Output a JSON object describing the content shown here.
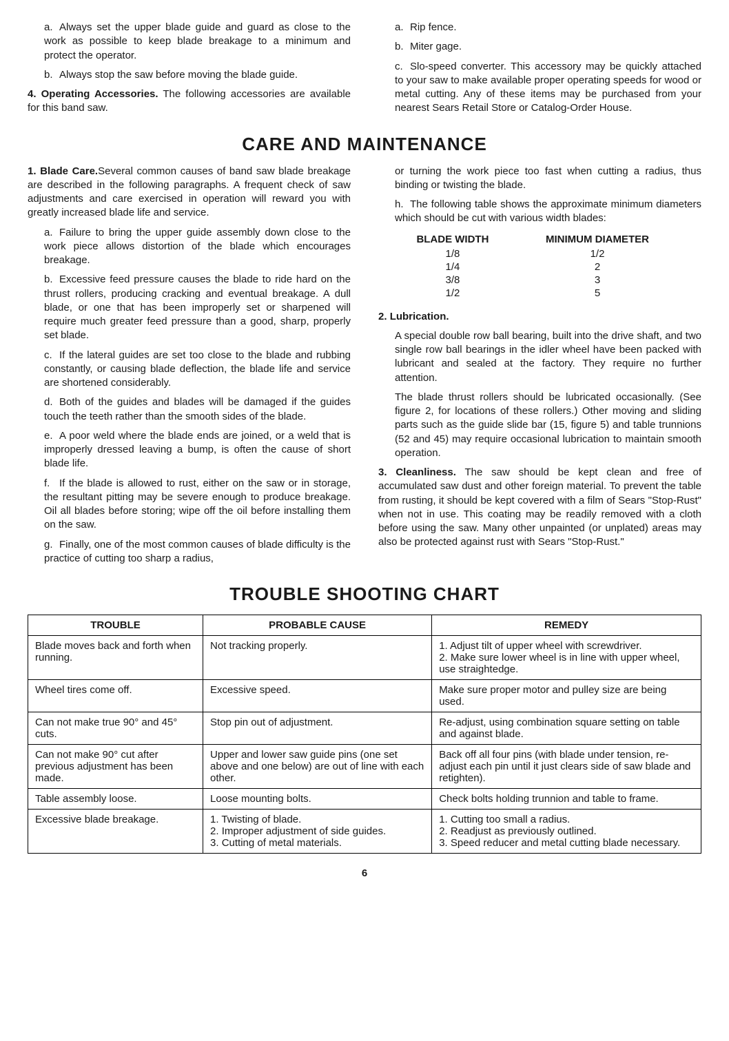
{
  "top": {
    "left": {
      "a": "Always set the upper blade guide and guard as close to the work as possible to keep blade breakage to a minimum and protect the operator.",
      "b": "Always stop the saw before moving the blade guide.",
      "item4_label": "4.",
      "item4_title": "Operating Accessories.",
      "item4_text": " The following accessories are available for this band saw."
    },
    "right": {
      "a": "Rip fence.",
      "b": "Miter gage.",
      "c": "Slo-speed converter. This accessory may be quickly attached to your saw to make available proper operating speeds for wood or metal cutting. Any of these items may be purchased from your nearest Sears Retail Store or Catalog-Order House."
    }
  },
  "care_heading": "CARE AND MAINTENANCE",
  "care": {
    "left": {
      "item1_label": "1.",
      "item1_title": "Blade Care.",
      "item1_text": "Several common causes of band saw blade breakage are described in the following paragraphs. A frequent check of saw adjustments and care exercised in operation will reward you with greatly increased blade life and service.",
      "a": "Failure to bring the upper guide assembly down close to the work piece allows distortion of the blade which encourages breakage.",
      "b": "Excessive feed pressure causes the blade to ride hard on the thrust rollers, producing cracking and eventual breakage. A dull blade, or one that has been improperly set or sharpened will require much greater feed pressure than a good, sharp, properly set blade.",
      "c": "If the lateral guides are set too close to the blade and rubbing constantly, or causing blade deflection, the blade life and service are shortened considerably.",
      "d": "Both of the guides and blades will be damaged if the guides touch the teeth rather than the smooth sides of the blade.",
      "e": "A poor weld where the blade ends are joined, or a weld that is improperly dressed leaving a bump, is often the cause of short blade life.",
      "f": "If the blade is allowed to rust, either on the saw or in storage, the resultant pitting may be severe enough to produce breakage. Oil all blades before storing; wipe off the oil before installing them on the saw.",
      "g": "Finally, one of the most common causes of blade difficulty is the practice of cutting too sharp a radius,"
    },
    "right": {
      "g_cont": "or turning the work piece too fast when cutting a radius, thus binding or twisting the blade.",
      "h": "The following table shows the approximate minimum diameters which should be cut with various width blades:",
      "table": {
        "col1": "BLADE WIDTH",
        "col2": "MINIMUM DIAMETER",
        "rows": [
          {
            "w": "1/8",
            "d": "1/2"
          },
          {
            "w": "1/4",
            "d": "2"
          },
          {
            "w": "3/8",
            "d": "3"
          },
          {
            "w": "1/2",
            "d": "5"
          }
        ]
      },
      "item2_label": "2.",
      "item2_title": "Lubrication.",
      "item2_p1": "A special double row ball bearing, built into the drive shaft, and two single row ball bearings in the idler wheel have been packed with lubricant and sealed at the factory. They require no further attention.",
      "item2_p2": "The blade thrust rollers should be lubricated occasionally. (See figure 2, for locations of these rollers.) Other moving and sliding parts such as the guide slide bar (15, figure 5) and table trunnions (52 and 45) may require occasional lubrication to maintain smooth operation.",
      "item3_label": "3.",
      "item3_title": "Cleanliness.",
      "item3_text": " The saw should be kept clean and free of accumulated saw dust and other foreign material. To prevent the table from rusting, it should be kept covered with a film of Sears \"Stop-Rust\" when not in use. This coating may be readily removed with a cloth before using the saw. Many other unpainted (or unplated) areas may also be protected against rust with Sears \"Stop-Rust.\""
    }
  },
  "chart_heading": "TROUBLE SHOOTING CHART",
  "chart": {
    "headers": {
      "trouble": "TROUBLE",
      "cause": "PROBABLE CAUSE",
      "remedy": "REMEDY"
    },
    "col_widths": [
      "26%",
      "34%",
      "40%"
    ],
    "rows": [
      {
        "trouble": "Blade moves back and forth when running.",
        "cause": "Not tracking properly.",
        "remedy": "1. Adjust tilt of upper wheel with screwdriver.\n2. Make sure lower wheel is in line with upper wheel, use straightedge."
      },
      {
        "trouble": "Wheel tires come off.",
        "cause": "Excessive speed.",
        "remedy": "Make sure proper motor and pulley size are being used."
      },
      {
        "trouble": "Can not make true 90° and 45° cuts.",
        "cause": "Stop pin out of adjustment.",
        "remedy": "Re-adjust, using combination square setting on table and against blade."
      },
      {
        "trouble": "Can not make 90° cut after previous adjustment has been made.",
        "cause": "Upper and lower saw guide pins (one set above and one below) are out of line with each other.",
        "remedy": "Back off all four pins (with blade under tension, re-adjust each pin until it just clears side of saw blade and retighten)."
      },
      {
        "trouble": "Table assembly loose.",
        "cause": "Loose mounting bolts.",
        "remedy": "Check bolts holding trunnion and table to frame."
      },
      {
        "trouble": "Excessive blade breakage.",
        "cause": "1. Twisting of blade.\n2. Improper adjustment of side guides.\n3. Cutting of metal materials.",
        "remedy": "1. Cutting too small a radius.\n2. Readjust as previously outlined.\n3. Speed reducer and metal cutting blade necessary."
      }
    ]
  },
  "page_number": "6"
}
